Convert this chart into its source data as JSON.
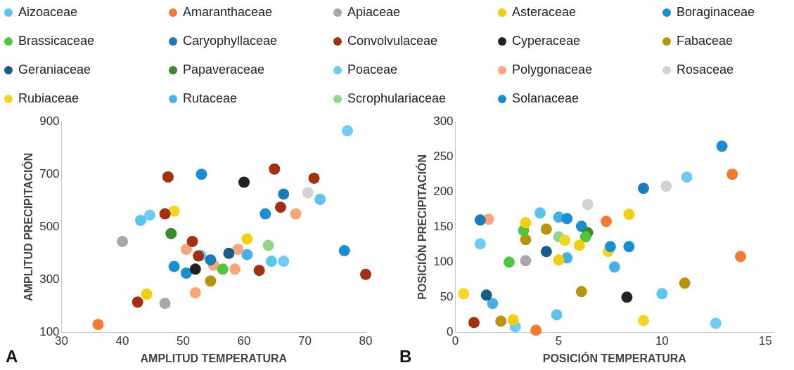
{
  "chart_data": [
    {
      "type": "scatter",
      "xlabel": "AMPLITUD TEMPERATURA",
      "ylabel": "AMPLITUD PRECIPITACIÓN",
      "xlim": [
        30,
        80
      ],
      "xticks": [
        30,
        40,
        50,
        60,
        70,
        80
      ],
      "ylim": [
        100,
        900
      ],
      "yticks": [
        100,
        300,
        500,
        700,
        900
      ],
      "grid": false,
      "legend": "top",
      "marker": "circle",
      "annotations": [
        "A"
      ],
      "series": [
        {
          "name": "Aizoaceae",
          "color": "#5bc4ef",
          "x": [
            43,
            72.5,
            64.5
          ],
          "values": [
            525,
            605,
            370
          ]
        },
        {
          "name": "Amaranthaceae",
          "color": "#f47a30",
          "x": [
            36
          ],
          "values": [
            130
          ]
        },
        {
          "name": "Apiaceae",
          "color": "#a8a8a8",
          "x": [
            47,
            40
          ],
          "values": [
            210,
            445
          ]
        },
        {
          "name": "Asteraceae",
          "color": "#f2cf0a",
          "x": [
            44,
            60.5
          ],
          "values": [
            245,
            455
          ]
        },
        {
          "name": "Boraginaceae",
          "color": "#1a8ed4",
          "x": [
            53,
            48.5,
            76.5
          ],
          "values": [
            700,
            350,
            410
          ]
        },
        {
          "name": "Brassicaceae",
          "color": "#4cc83c",
          "x": [
            56.5
          ],
          "values": [
            340
          ]
        },
        {
          "name": "Caryophyllaceae",
          "color": "#1a7cbc",
          "x": [
            54.5,
            66.5
          ],
          "values": [
            375,
            625
          ]
        },
        {
          "name": "Convolvulaceae",
          "color": "#a3300e",
          "x": [
            42.5,
            47,
            47.5,
            51.5,
            52.5,
            65,
            71.5,
            66,
            62.5,
            80
          ],
          "values": [
            215,
            550,
            690,
            445,
            390,
            720,
            685,
            575,
            335,
            320
          ]
        },
        {
          "name": "Cyperaceae",
          "color": "#222222",
          "x": [
            52,
            60
          ],
          "values": [
            340,
            670
          ]
        },
        {
          "name": "Fabaceae",
          "color": "#b8940c",
          "x": [
            54.5
          ],
          "values": [
            295
          ]
        },
        {
          "name": "Geraniaceae",
          "color": "#185c88",
          "x": [
            57.5
          ],
          "values": [
            400
          ]
        },
        {
          "name": "Papaveraceae",
          "color": "#3a8a2e",
          "x": [
            48
          ],
          "values": [
            475
          ]
        },
        {
          "name": "Poaceae",
          "color": "#6cccf4",
          "x": [
            44.5,
            52.9,
            77,
            66.5
          ],
          "values": [
            545,
            392,
            865,
            370
          ]
        },
        {
          "name": "Polygonaceae",
          "color": "#f7a67a",
          "x": [
            50.5,
            55,
            52,
            68.5,
            59,
            58.5
          ],
          "values": [
            415,
            355,
            250,
            550,
            415,
            340
          ]
        },
        {
          "name": "Rosaceae",
          "color": "#d2d2d2",
          "x": [
            70.5
          ],
          "values": [
            630
          ]
        },
        {
          "name": "Rubiaceae",
          "color": "#f6d420",
          "x": [
            48.5
          ],
          "values": [
            560
          ]
        },
        {
          "name": "Rutaceae",
          "color": "#48b0e8",
          "x": [
            60.5
          ],
          "values": [
            395
          ]
        },
        {
          "name": "Scrophulariaceae",
          "color": "#8ed88a",
          "x": [
            64
          ],
          "values": [
            430
          ]
        },
        {
          "name": "Solanaceae",
          "color": "#1690d2",
          "x": [
            50.5,
            63.5
          ],
          "values": [
            325,
            550
          ]
        }
      ]
    },
    {
      "type": "scatter",
      "xlabel": "POSICIÓN TEMPERATURA",
      "ylabel": "POSICIÓN PRECIPITACIÓN",
      "xlim": [
        0,
        15.4
      ],
      "xticks": [
        0,
        5,
        10,
        15
      ],
      "ylim": [
        0,
        300
      ],
      "yticks": [
        0,
        50,
        100,
        150,
        200,
        250,
        300
      ],
      "grid": false,
      "marker": "circle",
      "annotations": [
        "B"
      ],
      "series": [
        {
          "color": "#5bc4ef",
          "x": [
            4.1,
            4.9,
            10
          ],
          "values": [
            170,
            25,
            55
          ]
        },
        {
          "color": "#f47a30",
          "x": [
            7.3,
            3.9,
            13.4,
            13.8
          ],
          "values": [
            158,
            3,
            225,
            108
          ]
        },
        {
          "color": "#a8a8a8",
          "x": [
            3.4
          ],
          "values": [
            102
          ]
        },
        {
          "color": "#f2cf0a",
          "x": [
            3.4,
            6,
            5,
            2.8,
            8.4
          ],
          "values": [
            156,
            124,
            103,
            18,
            168
          ]
        },
        {
          "color": "#1a8ed4",
          "x": [
            5.4,
            7.5,
            12.9
          ],
          "values": [
            162,
            122,
            265
          ]
        },
        {
          "color": "#4cc83c",
          "x": [
            3.3,
            6.3,
            2.6
          ],
          "values": [
            145,
            136,
            100
          ]
        },
        {
          "color": "#1a7cbc",
          "x": [
            1.2,
            9.1
          ],
          "values": [
            160,
            205
          ]
        },
        {
          "color": "#a3300e",
          "x": [
            0.9
          ],
          "values": [
            14
          ]
        },
        {
          "color": "#222222",
          "x": [
            8.3
          ],
          "values": [
            50
          ]
        },
        {
          "color": "#b8940c",
          "x": [
            3.4,
            4.4,
            6.1,
            2.2,
            11.1
          ],
          "values": [
            132,
            147,
            58,
            16,
            70
          ]
        },
        {
          "color": "#185c88",
          "x": [
            4.4,
            1.5
          ],
          "values": [
            115,
            53
          ]
        },
        {
          "color": "#3a8a2e",
          "x": [
            6.4
          ],
          "values": [
            142
          ]
        },
        {
          "color": "#6cccf4",
          "x": [
            1.2,
            2.9,
            11.2,
            12.6
          ],
          "values": [
            126,
            8,
            221,
            13
          ]
        },
        {
          "color": "#f7a67a",
          "x": [
            1.6
          ],
          "values": [
            161
          ]
        },
        {
          "color": "#d2d2d2",
          "x": [
            6.4,
            10.2
          ],
          "values": [
            182,
            208
          ]
        },
        {
          "color": "#f6d420",
          "x": [
            5.3,
            7.4,
            0.4,
            9.1
          ],
          "values": [
            131,
            115,
            55,
            17
          ]
        },
        {
          "color": "#48b0e8",
          "x": [
            5,
            5.4,
            7.7,
            1.8
          ],
          "values": [
            164,
            106,
            93,
            41
          ]
        },
        {
          "color": "#8ed88a",
          "x": [
            5
          ],
          "values": [
            136
          ]
        },
        {
          "color": "#1690d2",
          "x": [
            6.1,
            8.4
          ],
          "values": [
            151,
            122
          ]
        }
      ]
    }
  ]
}
